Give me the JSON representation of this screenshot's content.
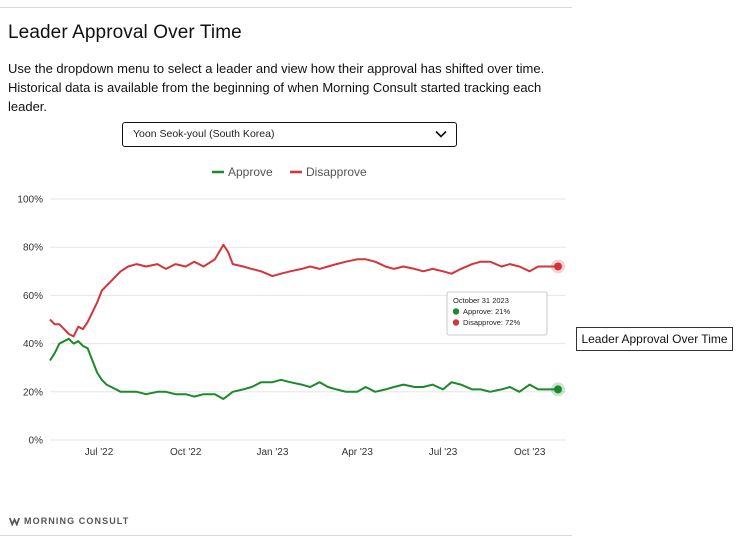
{
  "header": {
    "title": "Leader Approval Over Time",
    "description": "Use the dropdown menu to select a leader and view how their approval has shifted over time. Historical data is available from the beginning of when Morning Consult started tracking each leader."
  },
  "selector": {
    "selected": "Yoon Seok-youl (South Korea)",
    "icon": "chevron-down-icon"
  },
  "external_label": "Leader Approval Over Time",
  "brand": {
    "name": "MORNING CONSULT",
    "icon": "morning-consult-logo"
  },
  "colors": {
    "approve": "#1b8a2a",
    "disapprove": "#d2353b",
    "grid": "#e6e6e6"
  },
  "chart_data": {
    "type": "line",
    "title": "",
    "xlabel": "",
    "ylabel": "",
    "legend_position": "top-center",
    "grid": true,
    "ylim": [
      0,
      100
    ],
    "y_ticks": [
      "0%",
      "20%",
      "40%",
      "60%",
      "80%",
      "100%"
    ],
    "x_ticks": [
      {
        "date": "2022-07-01",
        "label": "Jul '22"
      },
      {
        "date": "2022-10-01",
        "label": "Oct '22"
      },
      {
        "date": "2023-01-01",
        "label": "Jan '23"
      },
      {
        "date": "2023-04-01",
        "label": "Apr '23"
      },
      {
        "date": "2023-07-01",
        "label": "Jul '23"
      },
      {
        "date": "2023-10-01",
        "label": "Oct '23"
      }
    ],
    "x_range": [
      "2022-05-10",
      "2023-10-31"
    ],
    "series": [
      {
        "name": "Approve",
        "points": [
          [
            "2022-05-10",
            33
          ],
          [
            "2022-05-15",
            36
          ],
          [
            "2022-05-20",
            40
          ],
          [
            "2022-05-25",
            41
          ],
          [
            "2022-05-30",
            42
          ],
          [
            "2022-06-04",
            40
          ],
          [
            "2022-06-09",
            41
          ],
          [
            "2022-06-14",
            39
          ],
          [
            "2022-06-19",
            38
          ],
          [
            "2022-06-24",
            33
          ],
          [
            "2022-06-29",
            28
          ],
          [
            "2022-07-04",
            25
          ],
          [
            "2022-07-09",
            23
          ],
          [
            "2022-07-14",
            22
          ],
          [
            "2022-07-19",
            21
          ],
          [
            "2022-07-24",
            20
          ],
          [
            "2022-08-01",
            20
          ],
          [
            "2022-08-10",
            20
          ],
          [
            "2022-08-20",
            19
          ],
          [
            "2022-09-01",
            20
          ],
          [
            "2022-09-10",
            20
          ],
          [
            "2022-09-20",
            19
          ],
          [
            "2022-10-01",
            19
          ],
          [
            "2022-10-10",
            18
          ],
          [
            "2022-10-20",
            19
          ],
          [
            "2022-11-01",
            19
          ],
          [
            "2022-11-10",
            17
          ],
          [
            "2022-11-20",
            20
          ],
          [
            "2022-12-01",
            21
          ],
          [
            "2022-12-10",
            22
          ],
          [
            "2022-12-20",
            24
          ],
          [
            "2023-01-01",
            24
          ],
          [
            "2023-01-10",
            25
          ],
          [
            "2023-01-20",
            24
          ],
          [
            "2023-02-01",
            23
          ],
          [
            "2023-02-10",
            22
          ],
          [
            "2023-02-20",
            24
          ],
          [
            "2023-03-01",
            22
          ],
          [
            "2023-03-10",
            21
          ],
          [
            "2023-03-20",
            20
          ],
          [
            "2023-04-01",
            20
          ],
          [
            "2023-04-10",
            22
          ],
          [
            "2023-04-20",
            20
          ],
          [
            "2023-05-01",
            21
          ],
          [
            "2023-05-10",
            22
          ],
          [
            "2023-05-20",
            23
          ],
          [
            "2023-06-01",
            22
          ],
          [
            "2023-06-10",
            22
          ],
          [
            "2023-06-20",
            23
          ],
          [
            "2023-07-01",
            21
          ],
          [
            "2023-07-10",
            24
          ],
          [
            "2023-07-20",
            23
          ],
          [
            "2023-08-01",
            21
          ],
          [
            "2023-08-10",
            21
          ],
          [
            "2023-08-20",
            20
          ],
          [
            "2023-09-01",
            21
          ],
          [
            "2023-09-10",
            22
          ],
          [
            "2023-09-20",
            20
          ],
          [
            "2023-10-01",
            23
          ],
          [
            "2023-10-10",
            21
          ],
          [
            "2023-10-20",
            21
          ],
          [
            "2023-10-31",
            21
          ]
        ]
      },
      {
        "name": "Disapprove",
        "points": [
          [
            "2022-05-10",
            50
          ],
          [
            "2022-05-15",
            48
          ],
          [
            "2022-05-20",
            48
          ],
          [
            "2022-05-25",
            46
          ],
          [
            "2022-05-30",
            44
          ],
          [
            "2022-06-04",
            43
          ],
          [
            "2022-06-09",
            47
          ],
          [
            "2022-06-14",
            46
          ],
          [
            "2022-06-19",
            49
          ],
          [
            "2022-06-24",
            53
          ],
          [
            "2022-06-29",
            57
          ],
          [
            "2022-07-04",
            62
          ],
          [
            "2022-07-09",
            64
          ],
          [
            "2022-07-14",
            66
          ],
          [
            "2022-07-19",
            68
          ],
          [
            "2022-07-24",
            70
          ],
          [
            "2022-08-01",
            72
          ],
          [
            "2022-08-10",
            73
          ],
          [
            "2022-08-20",
            72
          ],
          [
            "2022-09-01",
            73
          ],
          [
            "2022-09-10",
            71
          ],
          [
            "2022-09-20",
            73
          ],
          [
            "2022-10-01",
            72
          ],
          [
            "2022-10-10",
            74
          ],
          [
            "2022-10-20",
            72
          ],
          [
            "2022-11-01",
            75
          ],
          [
            "2022-11-10",
            81
          ],
          [
            "2022-11-15",
            78
          ],
          [
            "2022-11-20",
            73
          ],
          [
            "2022-12-01",
            72
          ],
          [
            "2022-12-10",
            71
          ],
          [
            "2022-12-20",
            70
          ],
          [
            "2023-01-01",
            68
          ],
          [
            "2023-01-10",
            69
          ],
          [
            "2023-01-20",
            70
          ],
          [
            "2023-02-01",
            71
          ],
          [
            "2023-02-10",
            72
          ],
          [
            "2023-02-20",
            71
          ],
          [
            "2023-03-01",
            72
          ],
          [
            "2023-03-10",
            73
          ],
          [
            "2023-03-20",
            74
          ],
          [
            "2023-04-01",
            75
          ],
          [
            "2023-04-10",
            75
          ],
          [
            "2023-04-20",
            74
          ],
          [
            "2023-05-01",
            72
          ],
          [
            "2023-05-10",
            71
          ],
          [
            "2023-05-20",
            72
          ],
          [
            "2023-06-01",
            71
          ],
          [
            "2023-06-10",
            70
          ],
          [
            "2023-06-20",
            71
          ],
          [
            "2023-07-01",
            70
          ],
          [
            "2023-07-10",
            69
          ],
          [
            "2023-07-20",
            71
          ],
          [
            "2023-08-01",
            73
          ],
          [
            "2023-08-10",
            74
          ],
          [
            "2023-08-20",
            74
          ],
          [
            "2023-09-01",
            72
          ],
          [
            "2023-09-10",
            73
          ],
          [
            "2023-09-20",
            72
          ],
          [
            "2023-10-01",
            70
          ],
          [
            "2023-10-10",
            72
          ],
          [
            "2023-10-20",
            72
          ],
          [
            "2023-10-31",
            72
          ]
        ]
      }
    ],
    "tooltip": {
      "date": "October 31 2023",
      "rows": [
        {
          "series": "Approve",
          "text": "Approve: 21%"
        },
        {
          "series": "Disapprove",
          "text": "Disapprove: 72%"
        }
      ]
    }
  }
}
